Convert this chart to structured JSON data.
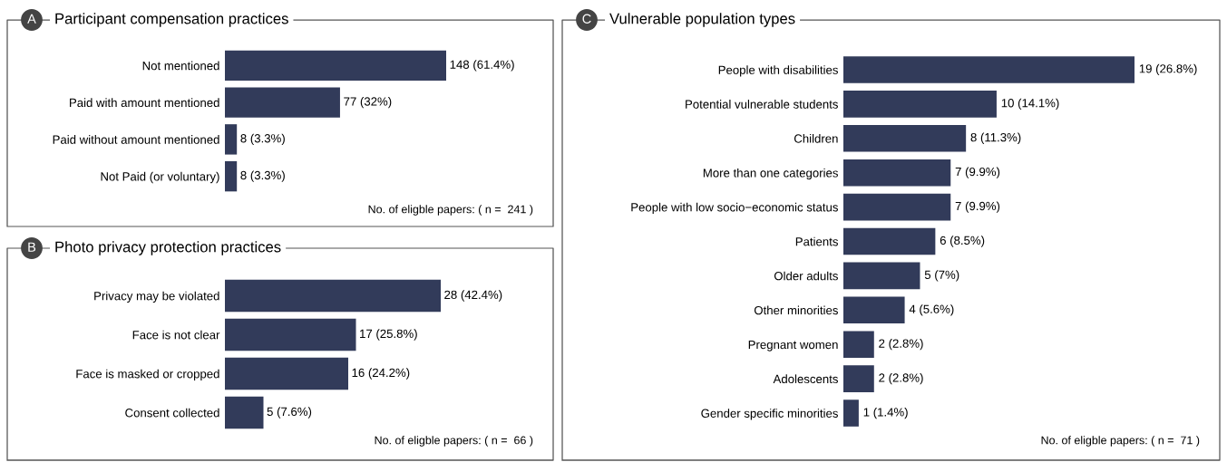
{
  "chart_data": [
    {
      "type": "bar",
      "orientation": "horizontal",
      "title": "Participant compensation practices",
      "annotations": [
        "A",
        "No. of eligble papers: ( n =  241 )"
      ],
      "categories": [
        "Not mentioned",
        "Paid with amount mentioned",
        "Paid without amount mentioned",
        "Not Paid (or voluntary)"
      ],
      "values": [
        148,
        77,
        8,
        8
      ],
      "value_labels": [
        "148 (61.4%)",
        "77 (32%)",
        "8 (3.3%)",
        "8 (3.3%)"
      ],
      "color": "#323b5a"
    },
    {
      "type": "bar",
      "orientation": "horizontal",
      "title": "Photo privacy protection practices",
      "annotations": [
        "B",
        "No. of eligble papers: ( n =  66 )"
      ],
      "categories": [
        "Privacy may be violated",
        "Face is not clear",
        "Face is masked or cropped",
        "Consent collected"
      ],
      "values": [
        28,
        17,
        16,
        5
      ],
      "value_labels": [
        "28 (42.4%)",
        "17 (25.8%)",
        "16 (24.2%)",
        "5 (7.6%)"
      ],
      "color": "#323b5a"
    },
    {
      "type": "bar",
      "orientation": "horizontal",
      "title": "Vulnerable population types",
      "annotations": [
        "C",
        "No. of eligble papers: ( n =  71 )"
      ],
      "categories": [
        "People with disabilities",
        "Potential vulnerable students",
        "Children",
        "More than one categories",
        "People with low socio−economic status",
        "Patients",
        "Older adults",
        "Other minorities",
        "Pregnant women",
        "Adolescents",
        "Gender specific minorities"
      ],
      "values": [
        19,
        10,
        8,
        7,
        7,
        6,
        5,
        4,
        2,
        2,
        1
      ],
      "value_labels": [
        "19 (26.8%)",
        "10 (14.1%)",
        "8 (11.3%)",
        "7 (9.9%)",
        "7 (9.9%)",
        "6 (8.5%)",
        "5 (7%)",
        "4 (5.6%)",
        "2 (2.8%)",
        "2 (2.8%)",
        "1 (1.4%)"
      ],
      "color": "#323b5a"
    }
  ]
}
